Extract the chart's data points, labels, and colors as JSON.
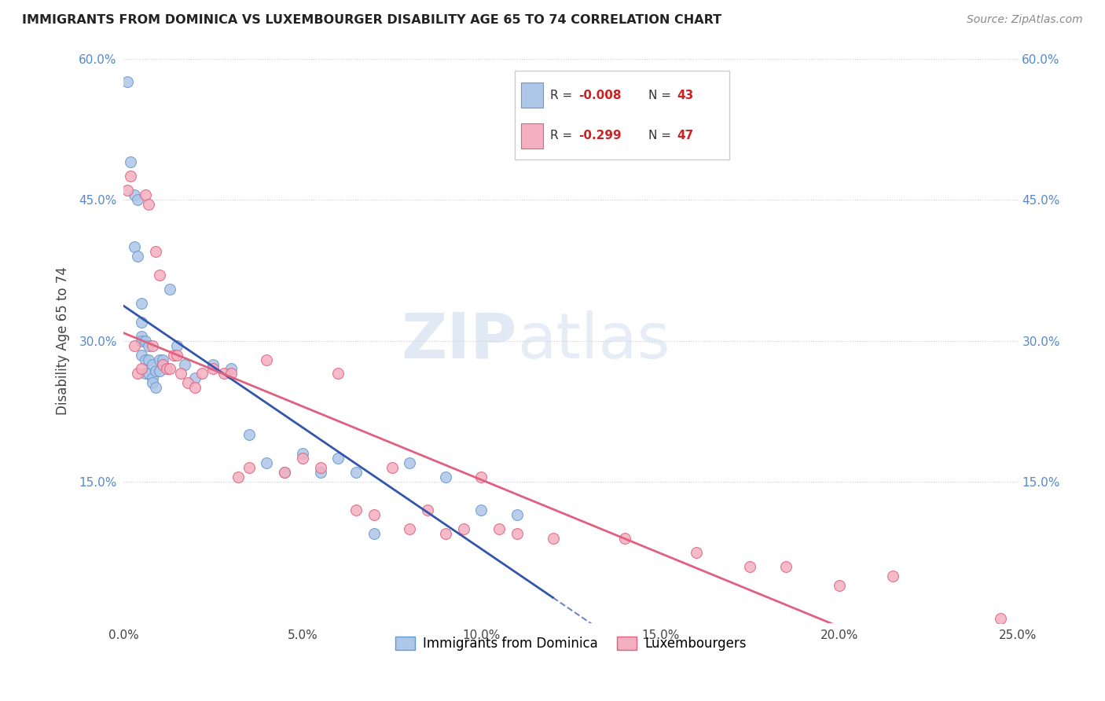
{
  "title": "IMMIGRANTS FROM DOMINICA VS LUXEMBOURGER DISABILITY AGE 65 TO 74 CORRELATION CHART",
  "source": "Source: ZipAtlas.com",
  "ylabel": "Disability Age 65 to 74",
  "xlim": [
    0.0,
    0.25
  ],
  "ylim": [
    0.0,
    0.6
  ],
  "xticks": [
    0.0,
    0.05,
    0.1,
    0.15,
    0.2,
    0.25
  ],
  "yticks": [
    0.0,
    0.15,
    0.3,
    0.45,
    0.6
  ],
  "xticklabels": [
    "0.0%",
    "5.0%",
    "10.0%",
    "15.0%",
    "20.0%",
    "25.0%"
  ],
  "yticklabels": [
    "",
    "15.0%",
    "30.0%",
    "45.0%",
    "60.0%"
  ],
  "series1_color": "#aec6e8",
  "series1_edge": "#6699cc",
  "series2_color": "#f4afc0",
  "series2_edge": "#e06080",
  "legend_r1": "-0.008",
  "legend_n1": "43",
  "legend_r2": "-0.299",
  "legend_n2": "47",
  "legend_label1": "Immigrants from Dominica",
  "legend_label2": "Luxembourgers",
  "watermark_zip": "ZIP",
  "watermark_atlas": "atlas",
  "trend1_color": "#3355aa",
  "trend2_color": "#e06080",
  "dominica_x": [
    0.001,
    0.002,
    0.003,
    0.003,
    0.004,
    0.004,
    0.005,
    0.005,
    0.005,
    0.005,
    0.005,
    0.006,
    0.006,
    0.006,
    0.007,
    0.007,
    0.007,
    0.008,
    0.008,
    0.008,
    0.009,
    0.009,
    0.01,
    0.01,
    0.011,
    0.013,
    0.015,
    0.017,
    0.02,
    0.025,
    0.03,
    0.035,
    0.04,
    0.045,
    0.05,
    0.055,
    0.06,
    0.065,
    0.07,
    0.08,
    0.09,
    0.1,
    0.11
  ],
  "dominica_y": [
    0.575,
    0.49,
    0.455,
    0.4,
    0.45,
    0.39,
    0.34,
    0.32,
    0.305,
    0.3,
    0.285,
    0.3,
    0.28,
    0.265,
    0.295,
    0.28,
    0.265,
    0.275,
    0.26,
    0.255,
    0.268,
    0.25,
    0.28,
    0.268,
    0.28,
    0.355,
    0.295,
    0.275,
    0.26,
    0.275,
    0.27,
    0.2,
    0.17,
    0.16,
    0.18,
    0.16,
    0.175,
    0.16,
    0.095,
    0.17,
    0.155,
    0.12,
    0.115
  ],
  "luxembourger_x": [
    0.001,
    0.002,
    0.003,
    0.004,
    0.005,
    0.006,
    0.007,
    0.008,
    0.009,
    0.01,
    0.011,
    0.012,
    0.013,
    0.014,
    0.015,
    0.016,
    0.018,
    0.02,
    0.022,
    0.025,
    0.028,
    0.03,
    0.032,
    0.035,
    0.04,
    0.045,
    0.05,
    0.055,
    0.06,
    0.065,
    0.07,
    0.075,
    0.08,
    0.085,
    0.09,
    0.095,
    0.1,
    0.105,
    0.11,
    0.12,
    0.14,
    0.16,
    0.175,
    0.185,
    0.2,
    0.215,
    0.245
  ],
  "luxembourger_y": [
    0.46,
    0.475,
    0.295,
    0.265,
    0.27,
    0.455,
    0.445,
    0.295,
    0.395,
    0.37,
    0.275,
    0.27,
    0.27,
    0.285,
    0.285,
    0.265,
    0.255,
    0.25,
    0.265,
    0.27,
    0.265,
    0.265,
    0.155,
    0.165,
    0.28,
    0.16,
    0.175,
    0.165,
    0.265,
    0.12,
    0.115,
    0.165,
    0.1,
    0.12,
    0.095,
    0.1,
    0.155,
    0.1,
    0.095,
    0.09,
    0.09,
    0.075,
    0.06,
    0.06,
    0.04,
    0.05,
    0.005
  ],
  "trend1_x_end": 0.12,
  "trend1_x_start": 0.0,
  "trend2_x_end": 0.25,
  "trend2_x_start": 0.0
}
